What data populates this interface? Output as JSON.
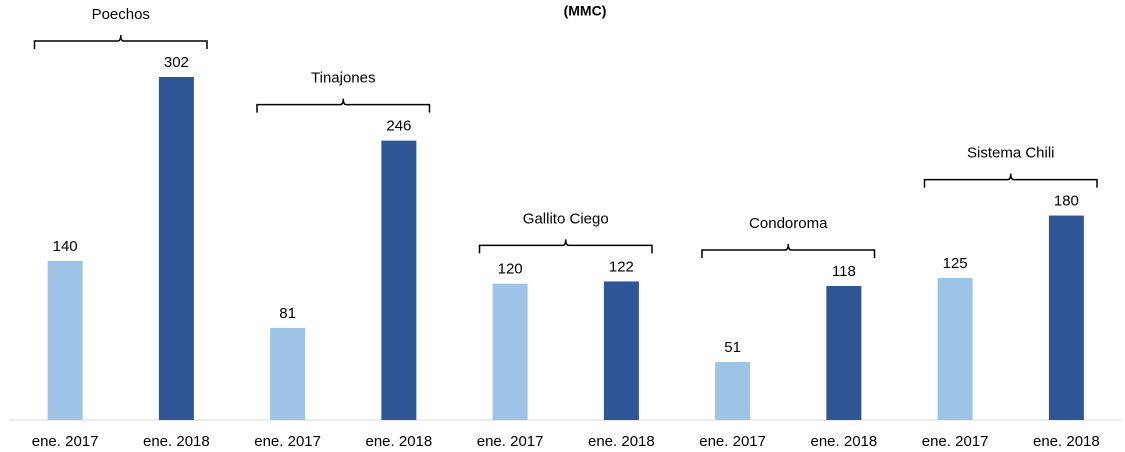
{
  "chart_data": {
    "type": "bar",
    "title": "(MMC)",
    "categories": [
      "ene. 2017",
      "ene. 2018",
      "ene. 2017",
      "ene. 2018",
      "ene. 2017",
      "ene. 2018",
      "ene. 2017",
      "ene. 2018",
      "ene. 2017",
      "ene. 2018"
    ],
    "values": [
      140,
      302,
      81,
      246,
      120,
      122,
      51,
      118,
      125,
      180
    ],
    "colors": [
      "#9dc3e6",
      "#2f5597"
    ],
    "groups": [
      "Poechos",
      "Tinajones",
      "Gallito Ciego",
      "Condoroma",
      "Sistema Chili"
    ]
  }
}
